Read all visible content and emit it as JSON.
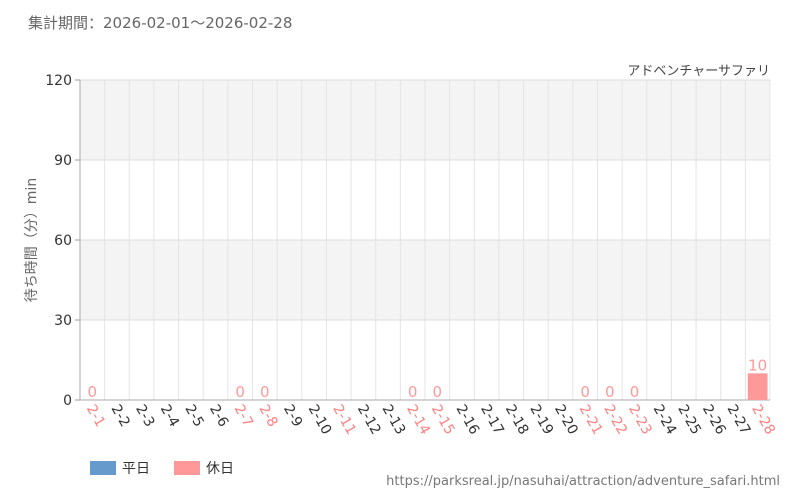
{
  "header": {
    "period_label": "集計期間：",
    "period_range": "2026-02-01～2026-02-28"
  },
  "attraction_name": "アドベンチャーサファリ",
  "legend": {
    "weekday_label": "平日",
    "holiday_label": "休日",
    "weekday_color": "#6699cc",
    "holiday_color": "#ff9999"
  },
  "source_url": "https://parksreal.jp/nasuhai/attraction/adventure_safari.html",
  "chart_data": {
    "type": "bar",
    "ylabel": "待ち時間（分）min",
    "ylim": [
      0,
      120
    ],
    "yticks": [
      0,
      30,
      60,
      90,
      120
    ],
    "grid": true,
    "categories": [
      "2-1",
      "2-2",
      "2-3",
      "2-4",
      "2-5",
      "2-6",
      "2-7",
      "2-8",
      "2-9",
      "2-10",
      "2-11",
      "2-12",
      "2-13",
      "2-14",
      "2-15",
      "2-16",
      "2-17",
      "2-18",
      "2-19",
      "2-20",
      "2-21",
      "2-22",
      "2-23",
      "2-24",
      "2-25",
      "2-26",
      "2-27",
      "2-28"
    ],
    "day_type": [
      "holiday",
      "weekday",
      "weekday",
      "weekday",
      "weekday",
      "weekday",
      "holiday",
      "holiday",
      "weekday",
      "weekday",
      "holiday",
      "weekday",
      "weekday",
      "holiday",
      "holiday",
      "weekday",
      "weekday",
      "weekday",
      "weekday",
      "weekday",
      "holiday",
      "holiday",
      "holiday",
      "weekday",
      "weekday",
      "weekday",
      "weekday",
      "holiday"
    ],
    "values": [
      0,
      null,
      null,
      null,
      null,
      null,
      0,
      0,
      null,
      null,
      null,
      null,
      null,
      0,
      0,
      null,
      null,
      null,
      null,
      null,
      0,
      0,
      0,
      null,
      null,
      null,
      null,
      10
    ],
    "series": [
      {
        "name": "平日",
        "color": "#6699cc"
      },
      {
        "name": "休日",
        "color": "#ff9999"
      }
    ]
  }
}
